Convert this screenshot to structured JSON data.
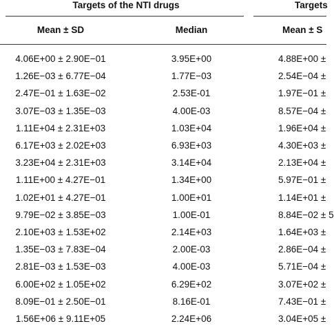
{
  "header": {
    "groups": [
      "Targets of the NTI drugs",
      "Targets"
    ],
    "columns": [
      "Mean ± SD",
      "Median",
      "Mean ± S"
    ]
  },
  "table": {
    "rows": [
      [
        "4.06E+00 ± 2.90E−01",
        "3.95E+00",
        "4.88E+00 ±"
      ],
      [
        "1.26E−03 ± 6.77E−04",
        "1.77E−03",
        "2.54E−04 ±"
      ],
      [
        "2.47E−01 ± 1.63E−02",
        "2.53E-01",
        "1.97E−01 ±"
      ],
      [
        "3.07E−03 ± 1.35E−03",
        "4.00E-03",
        "8.57E−04 ±"
      ],
      [
        "1.11E+04 ± 2.31E+03",
        "1.03E+04",
        "1.96E+04 ±"
      ],
      [
        "6.17E+03 ± 2.02E+03",
        "6.93E+03",
        "4.30E+03 ±"
      ],
      [
        "3.23E+04 ± 2.31E+03",
        "3.14E+04",
        "2.13E+04 ±"
      ],
      [
        "1.11E+00 ± 4.27E−01",
        "1.34E+00",
        "5.97E−01 ±"
      ],
      [
        "1.02E+01 ± 4.27E−01",
        "1.00E+01",
        "1.14E+01 ±"
      ],
      [
        "9.79E−02 ± 3.85E−03",
        "1.00E-01",
        "8.84E−02 ± 5"
      ],
      [
        "2.10E+03 ± 1.53E+02",
        "2.14E+03",
        "1.64E+03 ±"
      ],
      [
        "1.35E−03 ± 7.83E−04",
        "2.00E-03",
        "2.86E−04 ±"
      ],
      [
        "2.81E−03 ± 1.53E−03",
        "4.00E-03",
        "5.71E−04 ±"
      ],
      [
        "6.00E+02 ± 1.05E+02",
        "6.29E+02",
        "3.07E+02 ±"
      ],
      [
        "8.09E−01 ± 2.50E−01",
        "8.16E-01",
        "7.43E−01 ±"
      ],
      [
        "1.56E+06 ± 9.11E+05",
        "2.24E+06",
        "3.04E+05 ±"
      ]
    ]
  }
}
